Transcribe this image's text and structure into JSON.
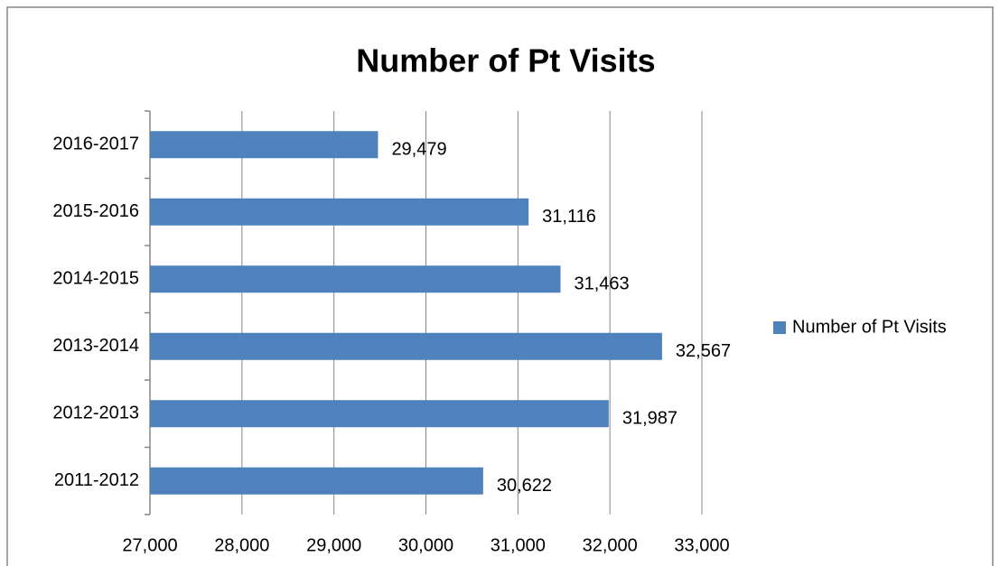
{
  "chart_data": {
    "type": "bar",
    "orientation": "horizontal",
    "title": "Number of Pt Visits",
    "categories": [
      "2011-2012",
      "2012-2013",
      "2013-2014",
      "2014-2015",
      "2015-2016",
      "2016-2017"
    ],
    "series": [
      {
        "name": "Number of Pt Visits",
        "color": "#4f81bd",
        "values": [
          30622,
          31987,
          32567,
          31463,
          31116,
          29479
        ],
        "value_labels": [
          "30,622",
          "31,987",
          "32,567",
          "31,463",
          "31,116",
          "29,479"
        ]
      }
    ],
    "xlim": [
      27000,
      33000
    ],
    "xticks": [
      {
        "value": 27000,
        "label": "27,000"
      },
      {
        "value": 28000,
        "label": "28,000"
      },
      {
        "value": 29000,
        "label": "29,000"
      },
      {
        "value": 30000,
        "label": "30,000"
      },
      {
        "value": 31000,
        "label": "31,000"
      },
      {
        "value": 32000,
        "label": "32,000"
      },
      {
        "value": 33000,
        "label": "33,000"
      }
    ],
    "grid": true,
    "legend": "right"
  }
}
